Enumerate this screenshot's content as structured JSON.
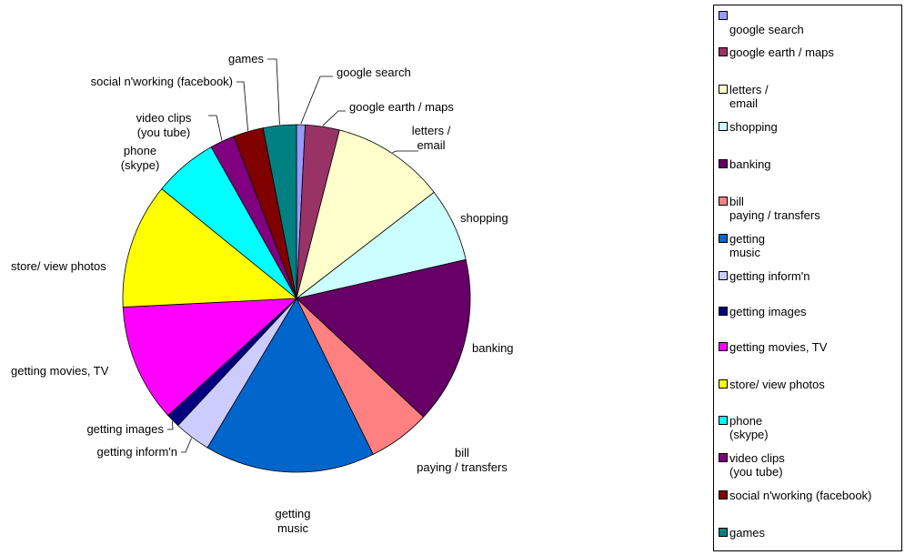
{
  "chart_data": {
    "type": "pie",
    "title": "",
    "legend_position": "right",
    "slices": [
      {
        "label": "google search",
        "legend_label": "\ngoogle search",
        "value": 0.8,
        "color": "#9999ff"
      },
      {
        "label": "google earth / maps",
        "legend_label": "google earth / maps",
        "value": 3.2,
        "color": "#993366"
      },
      {
        "label": "letters /\nemail",
        "legend_label": "letters /\nemail",
        "value": 10.6,
        "color": "#ffffcc"
      },
      {
        "label": "shopping",
        "legend_label": "shopping",
        "value": 6.9,
        "color": "#ccffff"
      },
      {
        "label": "banking",
        "legend_label": "banking",
        "value": 15.6,
        "color": "#660066"
      },
      {
        "label": "bill\npaying / transfers",
        "legend_label": "bill\npaying / transfers",
        "value": 5.8,
        "color": "#ff8080"
      },
      {
        "label": "getting\nmusic",
        "legend_label": "getting\n  music",
        "value": 15.9,
        "color": "#0066cc"
      },
      {
        "label": "getting inform'n",
        "legend_label": "getting inform'n",
        "value": 3.4,
        "color": "#ccccff"
      },
      {
        "label": "getting images",
        "legend_label": "getting images",
        "value": 1.3,
        "color": "#000080"
      },
      {
        "label": "getting movies, TV",
        "legend_label": "getting movies, TV",
        "value": 11.0,
        "color": "#ff00ff"
      },
      {
        "label": "store/ view photos",
        "legend_label": "store/ view photos",
        "value": 11.7,
        "color": "#ffff00"
      },
      {
        "label": "phone\n(skype)",
        "legend_label": "phone\n(skype)",
        "value": 6.0,
        "color": "#00ffff"
      },
      {
        "label": "video clips\n(you tube)",
        "legend_label": " video clips\n  (you tube)",
        "value": 2.3,
        "color": "#800080"
      },
      {
        "label": "social n'working (facebook)",
        "legend_label": "social n'working (facebook)",
        "value": 2.8,
        "color": "#800000"
      },
      {
        "label": "games",
        "legend_label": "games",
        "value": 3.1,
        "color": "#008080"
      }
    ]
  }
}
